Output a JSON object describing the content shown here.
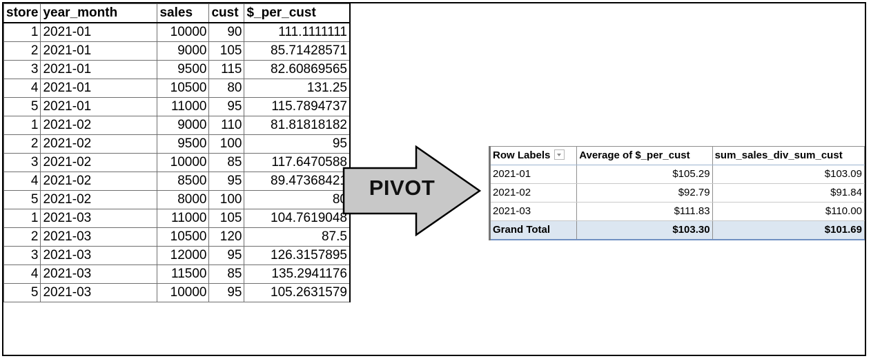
{
  "source_table": {
    "headers": [
      "store",
      "year_month",
      "sales",
      "cust",
      "$_per_cust"
    ],
    "rows": [
      [
        "1",
        "2021-01",
        "10000",
        "90",
        "111.1111111"
      ],
      [
        "2",
        "2021-01",
        "9000",
        "105",
        "85.71428571"
      ],
      [
        "3",
        "2021-01",
        "9500",
        "115",
        "82.60869565"
      ],
      [
        "4",
        "2021-01",
        "10500",
        "80",
        "131.25"
      ],
      [
        "5",
        "2021-01",
        "11000",
        "95",
        "115.7894737"
      ],
      [
        "1",
        "2021-02",
        "9000",
        "110",
        "81.81818182"
      ],
      [
        "2",
        "2021-02",
        "9500",
        "100",
        "95"
      ],
      [
        "3",
        "2021-02",
        "10000",
        "85",
        "117.6470588"
      ],
      [
        "4",
        "2021-02",
        "8500",
        "95",
        "89.47368421"
      ],
      [
        "5",
        "2021-02",
        "8000",
        "100",
        "80"
      ],
      [
        "1",
        "2021-03",
        "11000",
        "105",
        "104.7619048"
      ],
      [
        "2",
        "2021-03",
        "10500",
        "120",
        "87.5"
      ],
      [
        "3",
        "2021-03",
        "12000",
        "95",
        "126.3157895"
      ],
      [
        "4",
        "2021-03",
        "11500",
        "85",
        "135.2941176"
      ],
      [
        "5",
        "2021-03",
        "10000",
        "95",
        "105.2631579"
      ]
    ]
  },
  "arrow": {
    "label": "PIVOT",
    "fill": "#c8c8c8",
    "icon": "right-arrow-icon"
  },
  "pivot_table": {
    "headers": [
      "Row Labels",
      "Average of $_per_cust",
      "sum_sales_div_sum_cust"
    ],
    "filter_icon": "dropdown-filter-icon",
    "rows": [
      [
        "2021-01",
        "$105.29",
        "$103.09"
      ],
      [
        "2021-02",
        "$92.79",
        "$91.84"
      ],
      [
        "2021-03",
        "$111.83",
        "$110.00"
      ]
    ],
    "total": [
      "Grand Total",
      "$103.30",
      "$101.69"
    ],
    "total_fill": "#dce6f1"
  }
}
